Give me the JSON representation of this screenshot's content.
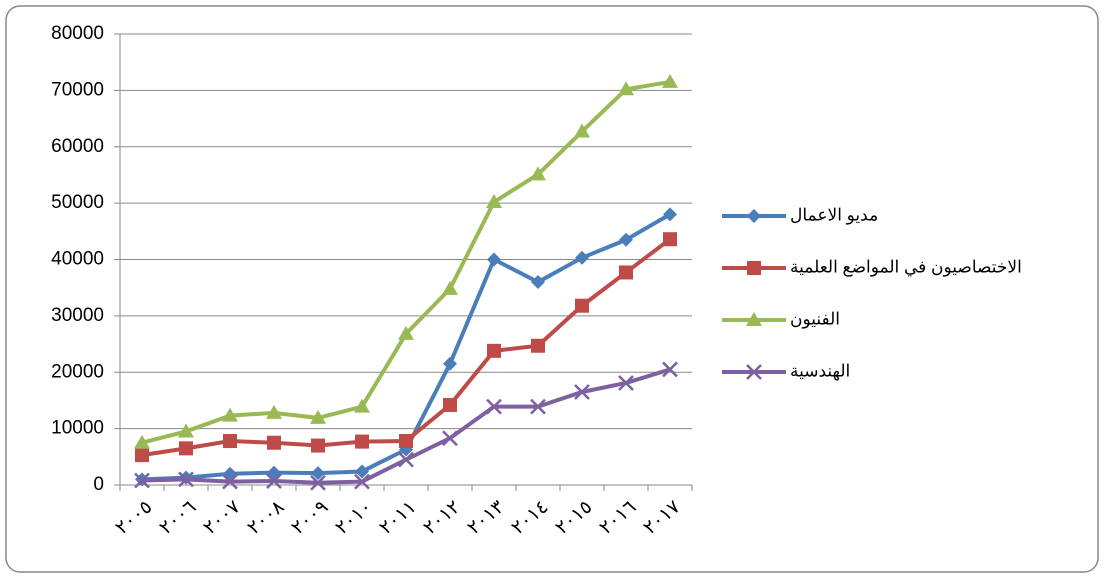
{
  "chart_data": {
    "type": "line",
    "categories": [
      "٢٠٠٥",
      "٢٠٠٦",
      "٢٠٠٧",
      "٢٠٠٨",
      "٢٠٠٩",
      "٢٠١٠",
      "٢٠١١",
      "٢٠١٢",
      "٢٠١٣",
      "٢٠١٤",
      "٢٠١٥",
      "٢٠١٦",
      "٢٠١٧"
    ],
    "series": [
      {
        "name": "مديو الاعمال",
        "color": "#4a7ebb",
        "marker": "diamond",
        "values": [
          1000,
          1300,
          2000,
          2200,
          2100,
          2400,
          6300,
          21500,
          40000,
          36000,
          40300,
          43500,
          48000
        ]
      },
      {
        "name": "الاختصاصيون في المواضع العلمية",
        "color": "#be4b48",
        "marker": "square",
        "values": [
          5300,
          6500,
          7800,
          7500,
          7000,
          7700,
          7800,
          14200,
          23800,
          24700,
          31800,
          37700,
          43600
        ]
      },
      {
        "name": "الفنيون",
        "color": "#98b954",
        "marker": "triangle",
        "values": [
          7500,
          9500,
          12300,
          12800,
          11900,
          13900,
          26800,
          34800,
          50200,
          55100,
          62700,
          70200,
          71500
        ]
      },
      {
        "name": "الهندسية",
        "color": "#7d60a0",
        "marker": "x",
        "values": [
          800,
          1000,
          600,
          700,
          400,
          600,
          4500,
          8300,
          13900,
          13900,
          16500,
          18100,
          20500
        ]
      }
    ],
    "ylim": [
      0,
      80000
    ],
    "yticks": [
      0,
      10000,
      20000,
      30000,
      40000,
      50000,
      60000,
      70000,
      80000
    ],
    "grid": true,
    "legend": "right"
  }
}
